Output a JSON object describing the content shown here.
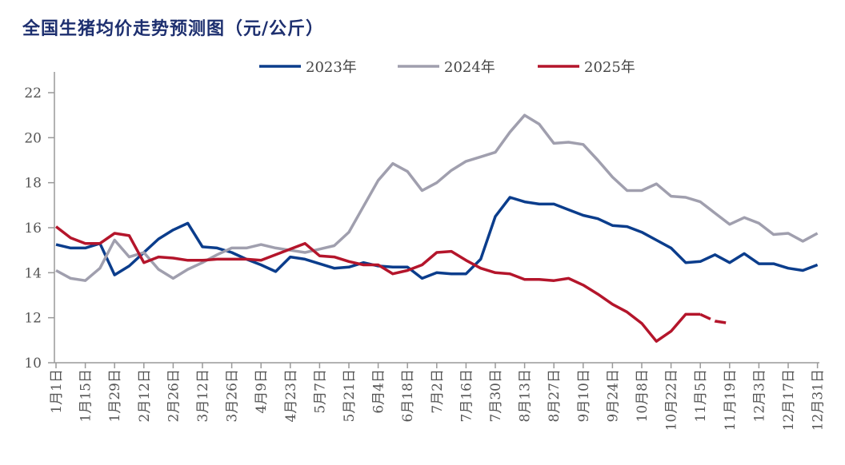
{
  "chart_data": {
    "type": "line",
    "title": "全国生猪均价走势预测图（元/公斤）",
    "ylim": [
      10,
      22
    ],
    "yticks": [
      10,
      12,
      14,
      16,
      18,
      20,
      22
    ],
    "grid": false,
    "legend_placement": "top",
    "x_tick_labels": [
      "1月1日",
      "1月15日",
      "1月29日",
      "2月12日",
      "2月26日",
      "3月12日",
      "3月26日",
      "4月9日",
      "4月23日",
      "5月7日",
      "5月21日",
      "6月4日",
      "6月18日",
      "7月2日",
      "7月16日",
      "7月30日",
      "8月13日",
      "8月27日",
      "9月10日",
      "9月24日",
      "10月8日",
      "10月22日",
      "11月5日",
      "11月19日",
      "12月3日",
      "12月17日",
      "12月31日"
    ],
    "x_note_weeks": "weekly points, week 1 = 1月1日",
    "series": [
      {
        "name": "2023年",
        "color": "#0b3d8c",
        "values": [
          15.25,
          15.1,
          15.1,
          15.3,
          13.9,
          14.3,
          14.9,
          15.5,
          15.9,
          16.2,
          15.15,
          15.1,
          14.9,
          14.6,
          14.35,
          14.05,
          14.7,
          14.6,
          14.4,
          14.2,
          14.25,
          14.45,
          14.3,
          14.25,
          14.25,
          13.75,
          14.0,
          13.95,
          13.95,
          14.6,
          16.5,
          17.35,
          17.15,
          17.05,
          17.05,
          16.8,
          16.55,
          16.4,
          16.1,
          16.05,
          15.8,
          15.45,
          15.1,
          14.45,
          14.5,
          14.8,
          14.45,
          14.85,
          14.4,
          14.4,
          14.2,
          14.1,
          14.35
        ]
      },
      {
        "name": "2024年",
        "color": "#a09fae",
        "values": [
          14.1,
          13.75,
          13.65,
          14.2,
          15.45,
          14.7,
          14.9,
          14.15,
          13.75,
          14.15,
          14.45,
          14.8,
          15.1,
          15.1,
          15.25,
          15.1,
          15.0,
          14.9,
          15.05,
          15.2,
          15.8,
          16.95,
          18.1,
          18.85,
          18.5,
          17.65,
          18.0,
          18.55,
          18.95,
          19.15,
          19.35,
          20.25,
          21.0,
          20.6,
          19.75,
          19.8,
          19.7,
          19.0,
          18.25,
          17.65,
          17.65,
          17.95,
          17.4,
          17.35,
          17.15,
          16.65,
          16.15,
          16.45,
          16.2,
          15.7,
          15.75,
          15.4,
          15.75
        ]
      },
      {
        "name": "2025年",
        "color": "#b4152b",
        "values": [
          16.05,
          15.55,
          15.3,
          15.3,
          15.75,
          15.65,
          14.45,
          14.7,
          14.65,
          14.55,
          14.55,
          14.6,
          14.6,
          14.6,
          14.55,
          14.8,
          15.05,
          15.3,
          14.75,
          14.7,
          14.5,
          14.35,
          14.35,
          13.95,
          14.1,
          14.35,
          14.9,
          14.95,
          14.55,
          14.2,
          14.0,
          13.95,
          13.7,
          13.7,
          13.65,
          13.75,
          13.45,
          13.05,
          12.6,
          12.25,
          11.75,
          10.95,
          11.4,
          12.15,
          12.15
        ],
        "forecast_values": [
          12.15,
          11.85,
          11.75
        ]
      }
    ]
  }
}
